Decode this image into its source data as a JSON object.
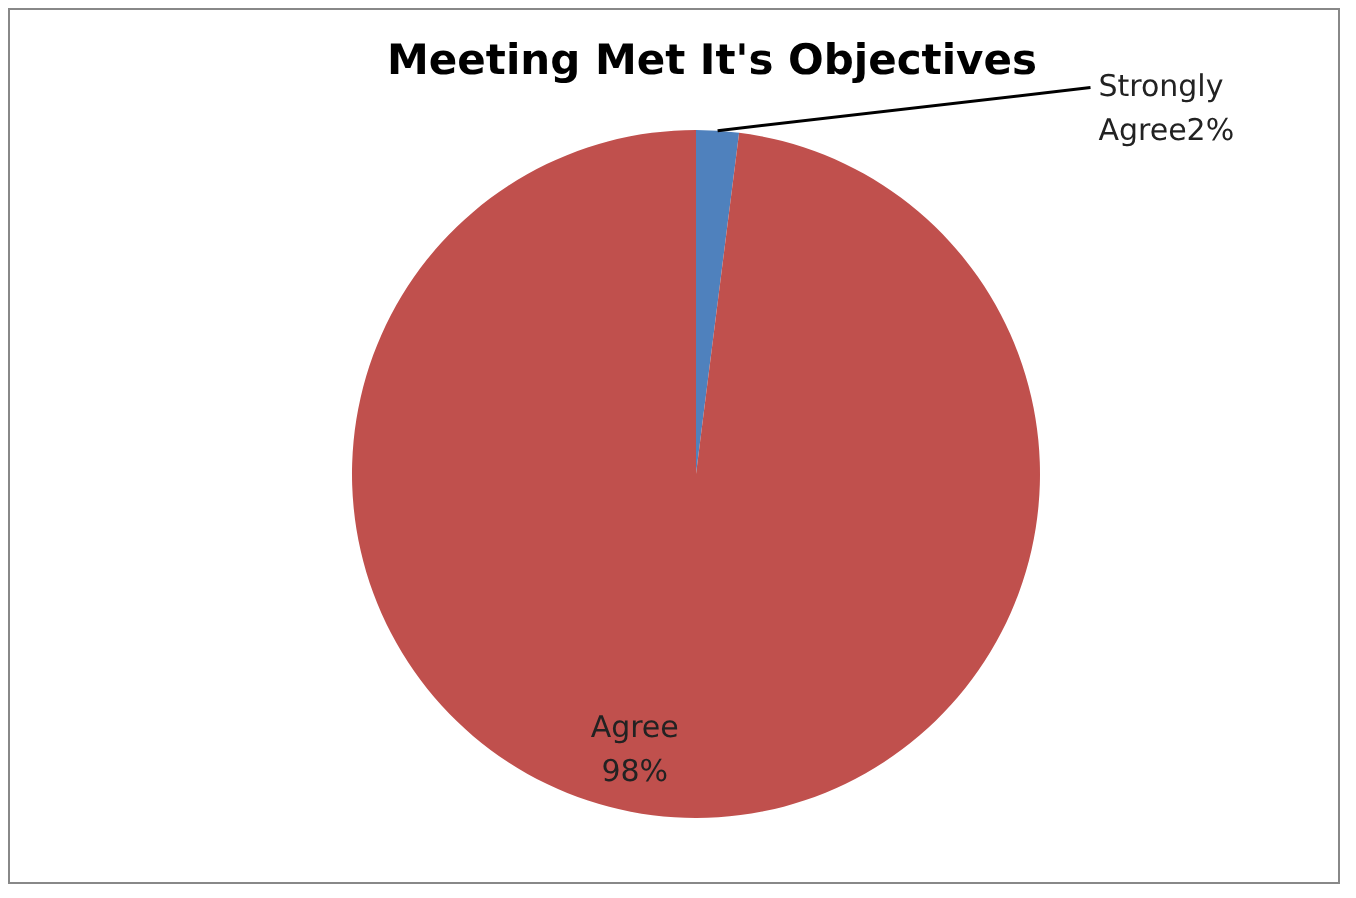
{
  "chart_data": {
    "type": "pie",
    "title": "Meeting Met It's Objectives",
    "categories": [
      "Strongly Agree",
      "Agree"
    ],
    "values": [
      2,
      98
    ],
    "colors": [
      "#4f81bd",
      "#c0504d"
    ],
    "value_labels": [
      "2%",
      "98%"
    ],
    "legend": false
  }
}
